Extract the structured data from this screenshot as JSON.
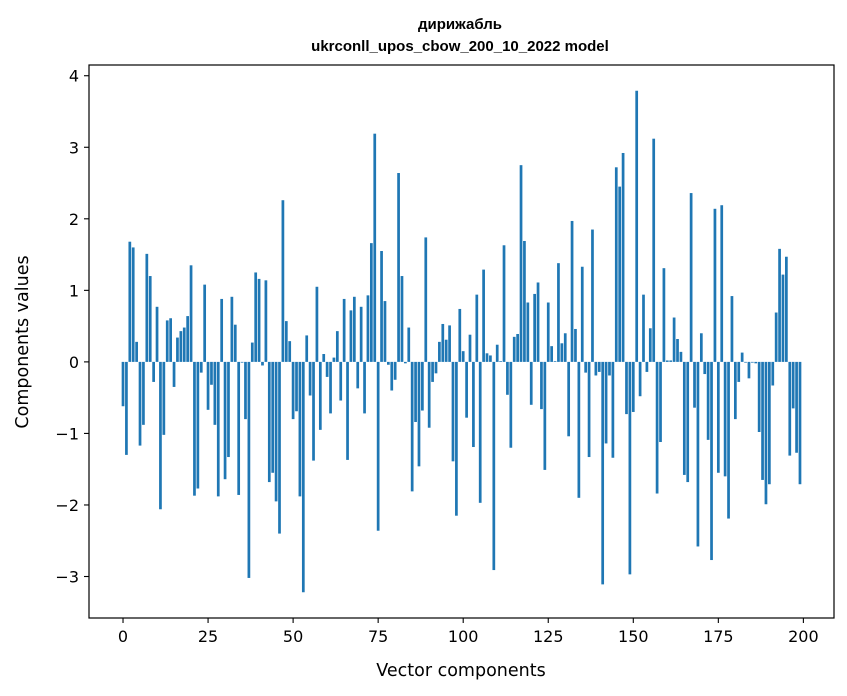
{
  "chart_data": {
    "type": "bar",
    "title_line1": "дирижабль",
    "title_line2": "ukrconll_upos_cbow_200_10_2022 model",
    "xlabel": "Vector components",
    "ylabel": "Components values",
    "xlim": [
      -10,
      209
    ],
    "ylim": [
      -3.58,
      4.15
    ],
    "xticks": [
      0,
      25,
      50,
      75,
      100,
      125,
      150,
      175,
      200
    ],
    "yticks": [
      -3,
      -2,
      -1,
      0,
      1,
      2,
      3,
      4
    ],
    "ytick_labels": [
      "−3",
      "−2",
      "−1",
      "0",
      "1",
      "2",
      "3",
      "4"
    ],
    "values": [
      -0.62,
      -1.3,
      1.68,
      1.6,
      0.28,
      -1.17,
      -0.88,
      1.51,
      1.2,
      -0.28,
      0.77,
      -2.06,
      -1.02,
      0.58,
      0.61,
      -0.35,
      0.34,
      0.43,
      0.48,
      0.64,
      1.35,
      -1.87,
      -1.77,
      -0.15,
      1.08,
      -0.67,
      -0.32,
      -0.88,
      -1.88,
      0.88,
      -1.64,
      -1.33,
      0.91,
      0.52,
      -1.86,
      -0.01,
      -0.8,
      -3.02,
      0.27,
      1.25,
      1.16,
      -0.05,
      1.14,
      -1.68,
      -1.55,
      -1.95,
      -2.4,
      2.26,
      0.57,
      0.29,
      -0.8,
      -0.69,
      -1.88,
      -3.22,
      0.37,
      -0.47,
      -1.38,
      1.05,
      -0.95,
      0.11,
      -0.21,
      -0.72,
      0.06,
      0.43,
      -0.54,
      0.88,
      -1.37,
      0.72,
      0.91,
      -0.37,
      0.77,
      -0.72,
      0.93,
      1.66,
      3.19,
      -2.36,
      1.55,
      0.85,
      -0.04,
      -0.4,
      -0.25,
      2.64,
      1.2,
      -0.02,
      0.48,
      -1.81,
      -0.84,
      -1.46,
      -0.68,
      1.74,
      -0.92,
      -0.28,
      -0.16,
      0.28,
      0.53,
      0.31,
      0.51,
      -1.39,
      -2.15,
      0.74,
      0.15,
      -0.78,
      0.38,
      -1.19,
      0.94,
      -1.97,
      1.29,
      0.12,
      0.09,
      -2.91,
      0.24,
      0.01,
      1.63,
      -0.46,
      -1.2,
      0.35,
      0.39,
      2.75,
      1.69,
      0.83,
      -0.6,
      0.95,
      1.11,
      -0.66,
      -1.51,
      0.83,
      0.22,
      0.01,
      1.38,
      0.26,
      0.4,
      -1.04,
      1.97,
      0.46,
      -1.9,
      1.33,
      -0.15,
      -1.33,
      1.85,
      -0.19,
      -0.14,
      -3.11,
      -1.14,
      -0.19,
      -1.34,
      2.72,
      2.45,
      2.92,
      -0.73,
      -2.97,
      -0.7,
      3.79,
      -0.48,
      0.94,
      -0.14,
      0.47,
      3.12,
      -1.84,
      -1.12,
      1.31,
      0.02,
      0.02,
      0.62,
      0.32,
      0.14,
      -1.58,
      -1.68,
      2.36,
      -0.64,
      -2.58,
      0.4,
      -0.17,
      -1.09,
      -2.77,
      2.14,
      -1.55,
      2.19,
      -1.6,
      -2.19,
      0.92,
      -0.8,
      -0.28,
      0.13,
      -0.01,
      -0.23,
      -0.01,
      -0.02,
      -0.98,
      -1.65,
      -1.99,
      -1.71,
      -0.33,
      0.69,
      1.58,
      1.22,
      1.47,
      -1.31,
      -0.65,
      -1.27,
      -1.71
    ]
  }
}
